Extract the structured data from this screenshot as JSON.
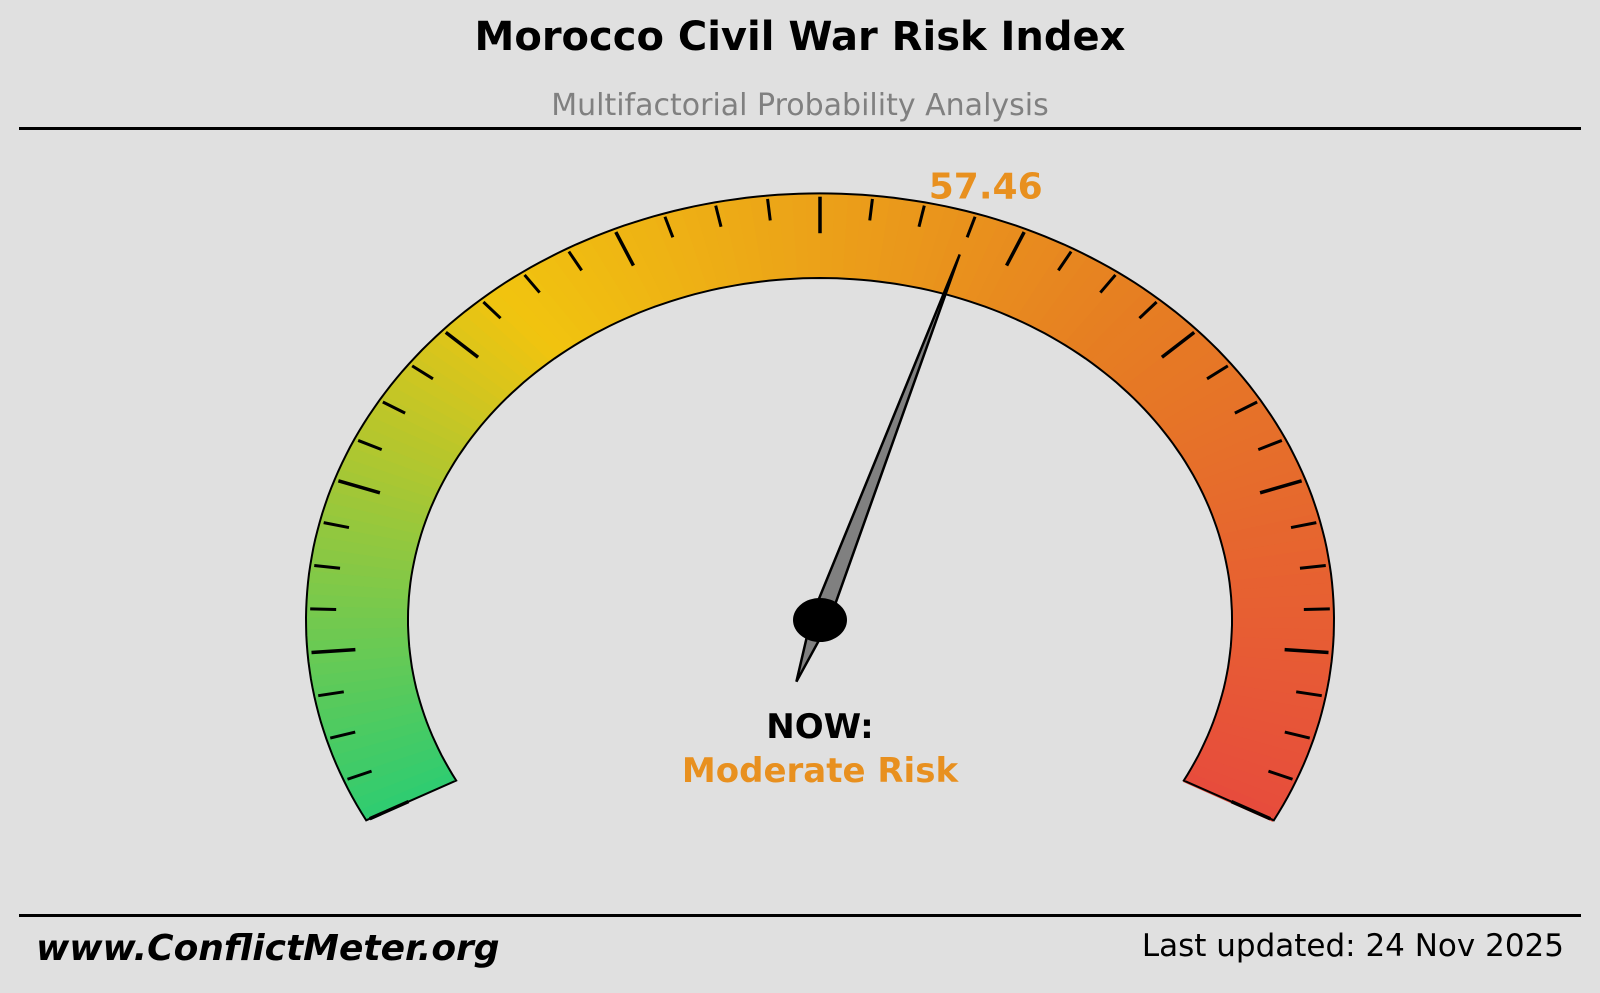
{
  "header": {
    "title": "Morocco Civil War Risk Index",
    "subtitle": "Multifactorial Probability Analysis"
  },
  "footer": {
    "website": "www.ConflictMeter.org",
    "last_updated": "Last updated: 24 Nov 2025"
  },
  "chart_data": {
    "type": "gauge",
    "value": 57.46,
    "value_label": "57.46",
    "min": 0,
    "max": 100,
    "status_prefix": "NOW:",
    "status_label": "Moderate Risk",
    "status_color": "#e8901f",
    "color_stops": [
      "#2ecc71",
      "#f1c40f",
      "#e67e22",
      "#e74c3c"
    ],
    "major_ticks_every": 10,
    "minor_ticks_every": 2.5
  }
}
